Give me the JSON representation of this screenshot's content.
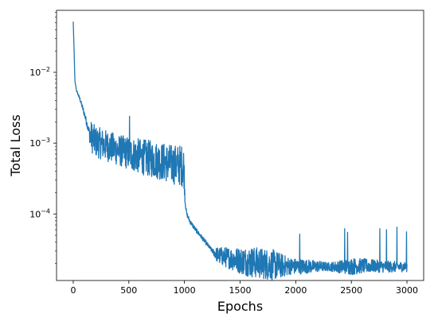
{
  "chart_data": {
    "type": "line",
    "title": "",
    "xlabel": "Epochs",
    "ylabel": "Total Loss",
    "xlim": [
      -150,
      3150
    ],
    "ylim": [
      1.15e-05,
      0.075
    ],
    "yscale": "log",
    "grid": false,
    "x_ticks": [
      0,
      500,
      1000,
      1500,
      2000,
      2500,
      3000
    ],
    "x_tick_labels": [
      "0",
      "500",
      "1000",
      "1500",
      "2000",
      "2500",
      "3000"
    ],
    "y_ticks": [
      {
        "value": 0.01,
        "base": "10",
        "exp": "−2"
      },
      {
        "value": 0.001,
        "base": "10",
        "exp": "−3"
      },
      {
        "value": 0.0001,
        "base": "10",
        "exp": "−4"
      }
    ],
    "series": [
      {
        "color": "#1f77b4",
        "trend": [
          [
            0,
            0.052
          ],
          [
            8,
            0.02
          ],
          [
            15,
            0.0075
          ],
          [
            30,
            0.0055
          ],
          [
            60,
            0.0042
          ],
          [
            100,
            0.0026
          ],
          [
            150,
            0.0013
          ],
          [
            200,
            0.00105
          ],
          [
            300,
            0.00092
          ],
          [
            400,
            0.0008
          ],
          [
            500,
            0.00072
          ],
          [
            600,
            0.00065
          ],
          [
            700,
            0.0006
          ],
          [
            800,
            0.00055
          ],
          [
            900,
            0.0005
          ],
          [
            995,
            0.00048
          ],
          [
            1005,
            0.00015
          ],
          [
            1020,
            0.0001
          ],
          [
            1050,
            7.8e-05
          ],
          [
            1100,
            6e-05
          ],
          [
            1150,
            4.8e-05
          ],
          [
            1200,
            3.8e-05
          ],
          [
            1250,
            3e-05
          ],
          [
            1300,
            2.6e-05
          ],
          [
            1400,
            2.4e-05
          ],
          [
            1500,
            2.2e-05
          ],
          [
            1600,
            2.1e-05
          ],
          [
            1700,
            2e-05
          ],
          [
            1800,
            1.9e-05
          ],
          [
            1900,
            1.85e-05
          ],
          [
            2000,
            1.82e-05
          ],
          [
            2100,
            1.82e-05
          ],
          [
            2200,
            1.82e-05
          ],
          [
            2300,
            1.8e-05
          ],
          [
            2400,
            1.8e-05
          ],
          [
            2500,
            1.82e-05
          ],
          [
            2600,
            1.85e-05
          ],
          [
            2700,
            1.85e-05
          ],
          [
            2800,
            1.8e-05
          ],
          [
            2900,
            1.8e-05
          ],
          [
            3000,
            1.8e-05
          ]
        ],
        "noise": [
          [
            0,
            0.0
          ],
          [
            140,
            0.06
          ],
          [
            160,
            0.22
          ],
          [
            400,
            0.22
          ],
          [
            600,
            0.25
          ],
          [
            900,
            0.28
          ],
          [
            995,
            0.3
          ],
          [
            1005,
            0.03
          ],
          [
            1250,
            0.03
          ],
          [
            1300,
            0.12
          ],
          [
            1600,
            0.22
          ],
          [
            1800,
            0.22
          ],
          [
            1950,
            0.12
          ],
          [
            2100,
            0.1
          ],
          [
            2300,
            0.06
          ],
          [
            2500,
            0.12
          ],
          [
            2700,
            0.09
          ],
          [
            3000,
            0.07
          ]
        ],
        "spikes": [
          [
            505,
            0.0024
          ],
          [
            2035,
            5.2e-05
          ],
          [
            2440,
            6.2e-05
          ],
          [
            2465,
            5.5e-05
          ],
          [
            2755,
            6.2e-05
          ],
          [
            2815,
            6e-05
          ],
          [
            2910,
            6.5e-05
          ],
          [
            2995,
            5.6e-05
          ]
        ]
      }
    ]
  }
}
